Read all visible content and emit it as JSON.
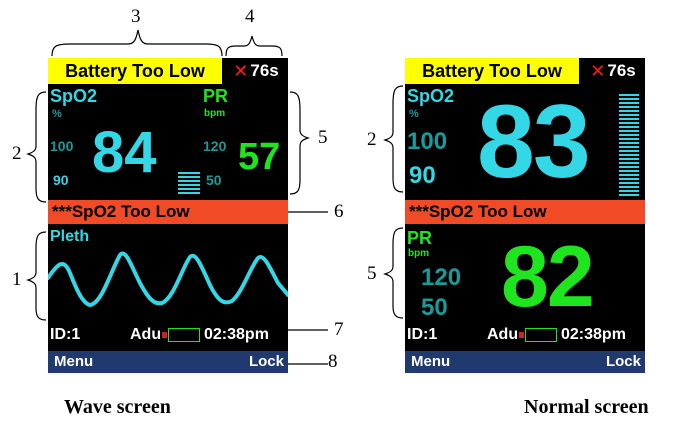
{
  "wave_screen": {
    "alarm": "Battery Too Low",
    "timer": "76s",
    "spo2_label": "SpO2",
    "spo2_unit": "%",
    "spo2_high": "100",
    "spo2_low": "90",
    "spo2_value": "84",
    "pr_label": "PR",
    "pr_unit": "bpm",
    "pr_high": "120",
    "pr_low": "50",
    "pr_value": "57",
    "alarm2": "***SpO2 Too Low",
    "pleth_label": "Pleth",
    "id": "ID:1",
    "mode": "Adu",
    "time": "02:38pm",
    "menu": "Menu",
    "lock": "Lock"
  },
  "normal_screen": {
    "alarm": "Battery Too Low",
    "timer": "76s",
    "spo2_label": "SpO2",
    "spo2_unit": "%",
    "spo2_high": "100",
    "spo2_low": "90",
    "spo2_value": "83",
    "alarm2": "***SpO2 Too Low",
    "pr_label": "PR",
    "pr_unit": "bpm",
    "pr_high": "120",
    "pr_low": "50",
    "pr_value": "82",
    "id": "ID:1",
    "mode": "Adu",
    "time": "02:38pm",
    "menu": "Menu",
    "lock": "Lock"
  },
  "callouts": {
    "c1": "1",
    "c2": "2",
    "c3": "3",
    "c4": "4",
    "c5": "5",
    "c6": "6",
    "c7": "7",
    "c8": "8",
    "n2": "2",
    "n5": "5"
  },
  "captions": {
    "wave": "Wave screen",
    "normal": "Normal screen"
  },
  "colors": {
    "screen_bg": "#000000",
    "battery_bg": "#ffff00",
    "alarm_bg": "#f04a26",
    "spo2": "#33d7e6",
    "pr": "#1fe51f",
    "softkey_bg": "#203a70"
  }
}
